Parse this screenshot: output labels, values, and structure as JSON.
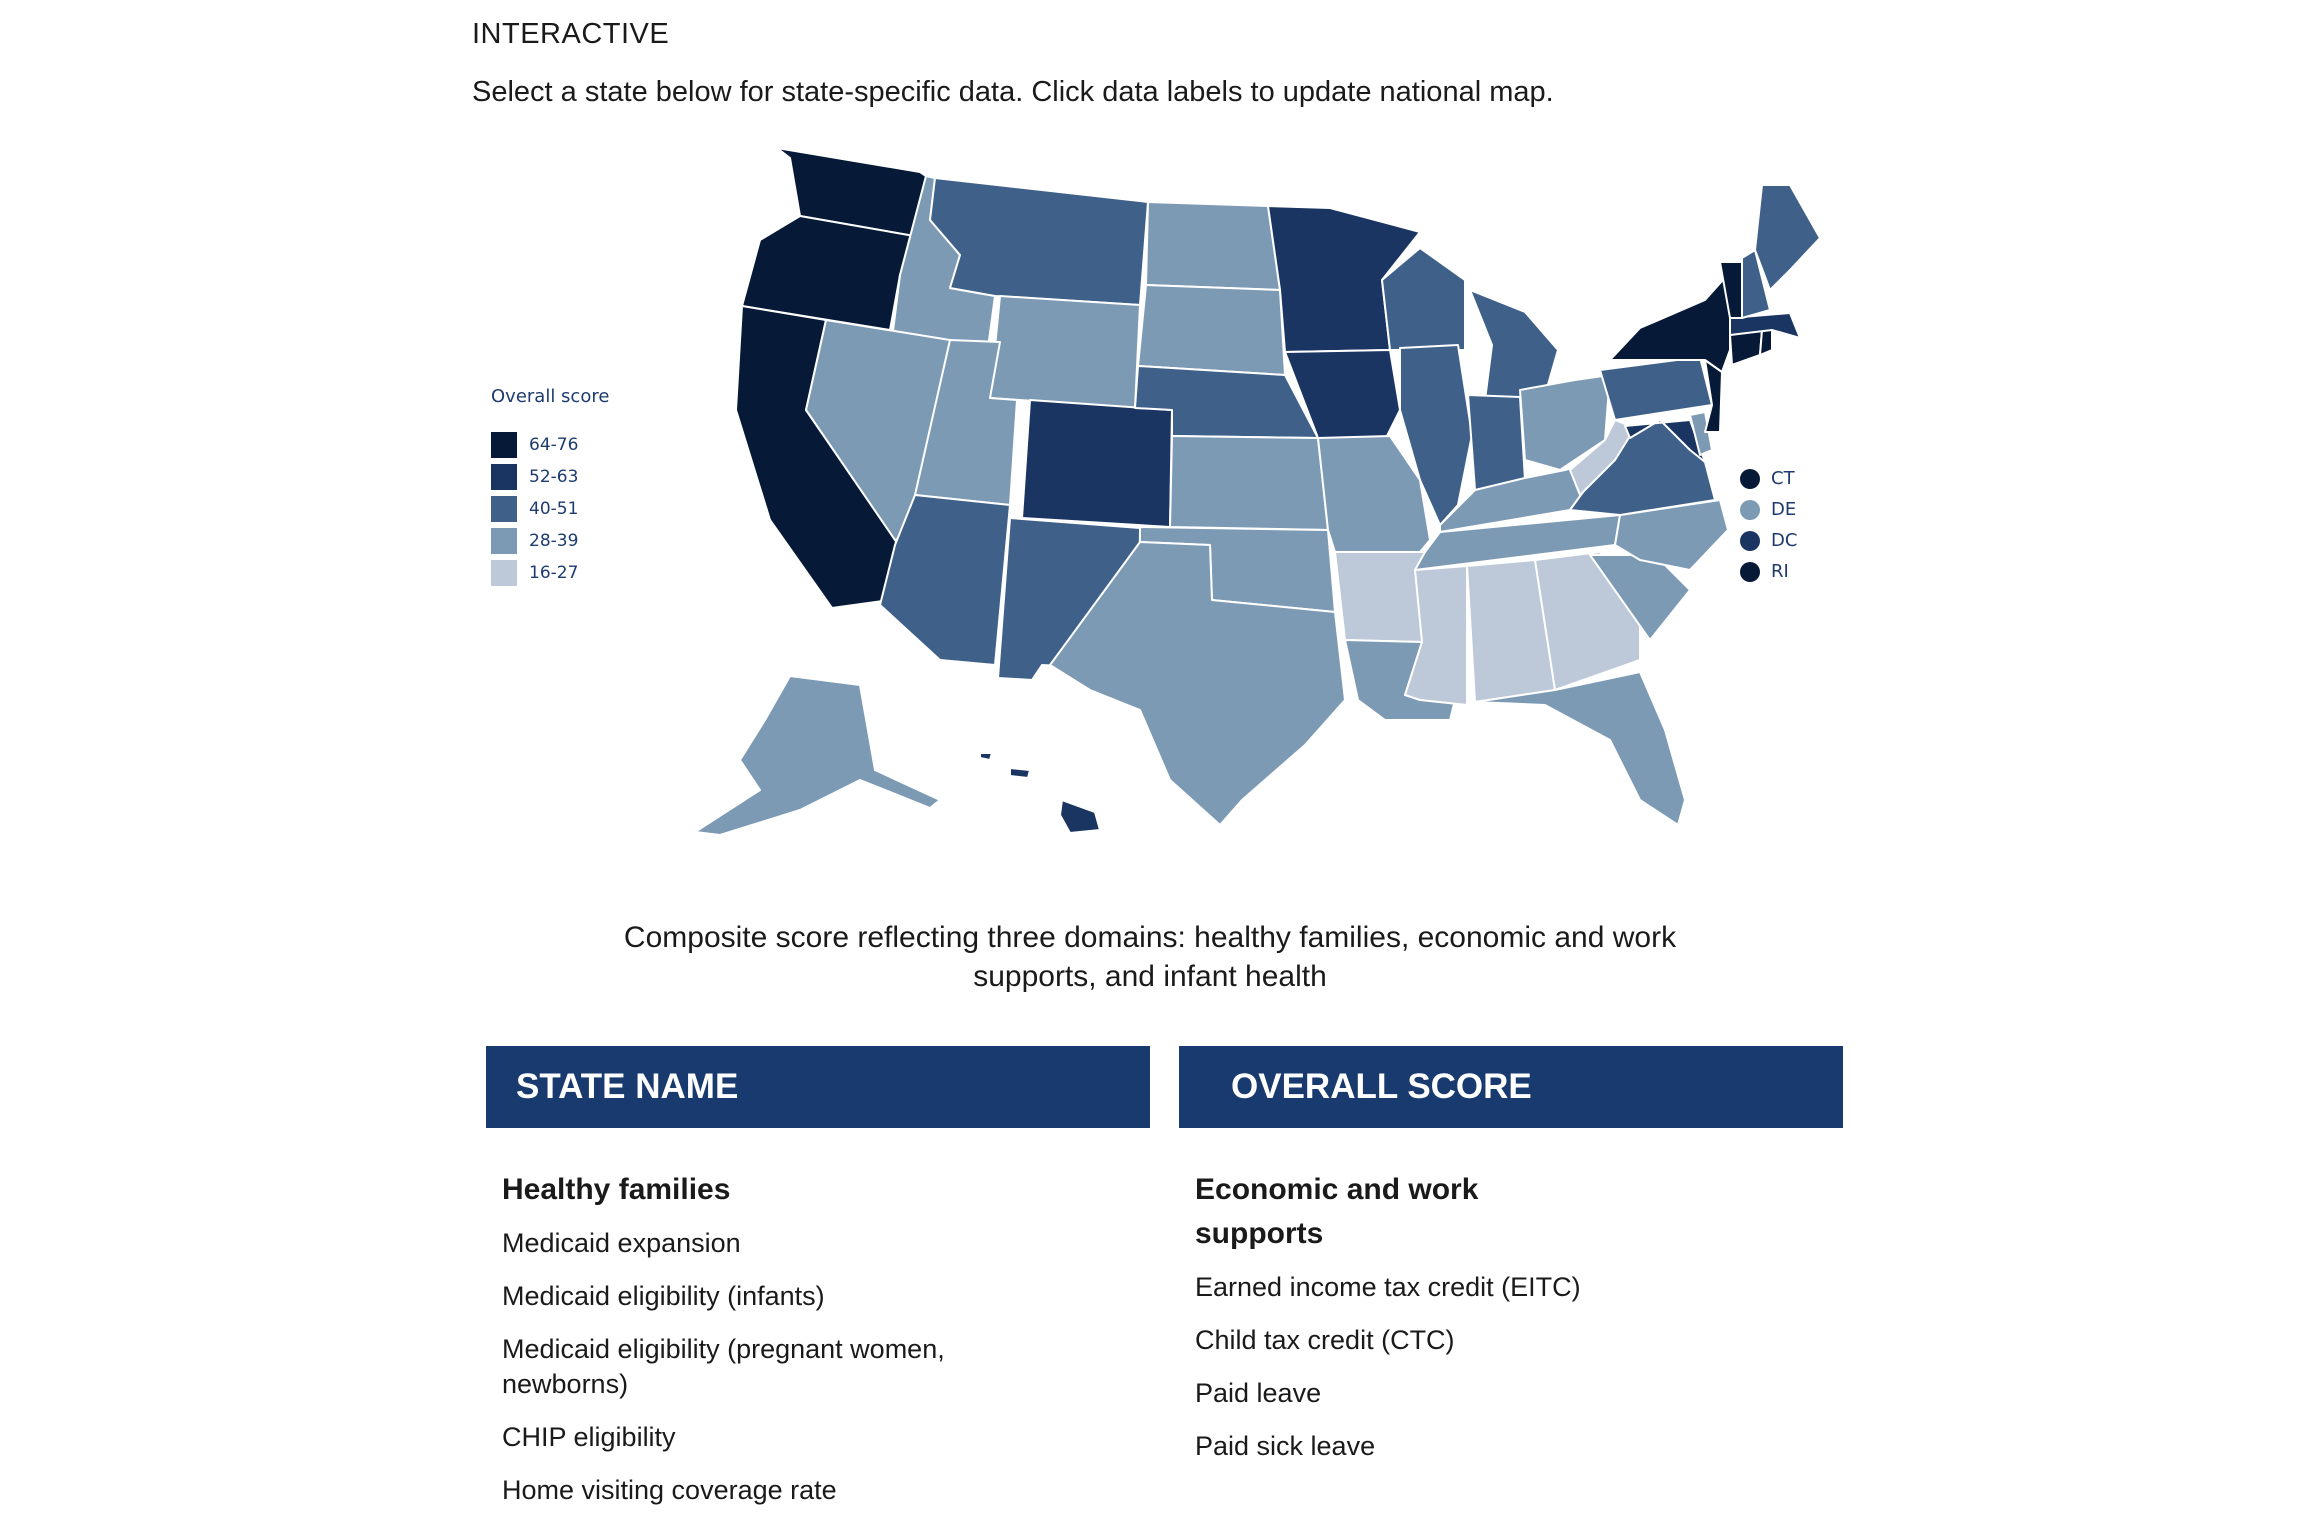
{
  "header": {
    "eyebrow": "INTERACTIVE",
    "intro": "Select a state below for state-specific data. Click data labels to update national map."
  },
  "map": {
    "legend_title": "Overall score",
    "legend": [
      {
        "label": "64-76",
        "color": "#061a38"
      },
      {
        "label": "52-63",
        "color": "#1b3563"
      },
      {
        "label": "40-51",
        "color": "#3f6189"
      },
      {
        "label": "28-39",
        "color": "#7d9ab5"
      },
      {
        "label": "16-27",
        "color": "#bdc8d8"
      }
    ],
    "small_states": [
      {
        "label": "CT",
        "color": "#061a38"
      },
      {
        "label": "DE",
        "color": "#7d9ab5"
      },
      {
        "label": "DC",
        "color": "#1b3563"
      },
      {
        "label": "RI",
        "color": "#061a38"
      }
    ],
    "regions": [
      {
        "name": "washington",
        "tier": 0
      },
      {
        "name": "oregon",
        "tier": 0
      },
      {
        "name": "california",
        "tier": 0
      },
      {
        "name": "idaho",
        "tier": 3
      },
      {
        "name": "nevada",
        "tier": 3
      },
      {
        "name": "montana",
        "tier": 2
      },
      {
        "name": "wyoming",
        "tier": 3
      },
      {
        "name": "utah",
        "tier": 3
      },
      {
        "name": "arizona",
        "tier": 2
      },
      {
        "name": "colorado",
        "tier": 1
      },
      {
        "name": "new-mexico",
        "tier": 2
      },
      {
        "name": "north-dakota",
        "tier": 3
      },
      {
        "name": "south-dakota",
        "tier": 3
      },
      {
        "name": "nebraska",
        "tier": 2
      },
      {
        "name": "kansas",
        "tier": 3
      },
      {
        "name": "oklahoma",
        "tier": 3
      },
      {
        "name": "texas",
        "tier": 3
      },
      {
        "name": "minnesota",
        "tier": 1
      },
      {
        "name": "iowa",
        "tier": 1
      },
      {
        "name": "missouri",
        "tier": 3
      },
      {
        "name": "arkansas",
        "tier": 4
      },
      {
        "name": "louisiana",
        "tier": 3
      },
      {
        "name": "wisconsin",
        "tier": 2
      },
      {
        "name": "illinois",
        "tier": 2
      },
      {
        "name": "michigan",
        "tier": 2
      },
      {
        "name": "indiana",
        "tier": 2
      },
      {
        "name": "ohio",
        "tier": 3
      },
      {
        "name": "kentucky",
        "tier": 3
      },
      {
        "name": "tennessee",
        "tier": 3
      },
      {
        "name": "mississippi",
        "tier": 4
      },
      {
        "name": "alabama",
        "tier": 4
      },
      {
        "name": "georgia",
        "tier": 4
      },
      {
        "name": "florida",
        "tier": 3
      },
      {
        "name": "south-carolina",
        "tier": 3
      },
      {
        "name": "north-carolina",
        "tier": 3
      },
      {
        "name": "virginia",
        "tier": 2
      },
      {
        "name": "west-virginia",
        "tier": 4
      },
      {
        "name": "maryland",
        "tier": 1
      },
      {
        "name": "delaware",
        "tier": 3
      },
      {
        "name": "pennsylvania",
        "tier": 2
      },
      {
        "name": "new-jersey",
        "tier": 0
      },
      {
        "name": "new-york",
        "tier": 0
      },
      {
        "name": "connecticut",
        "tier": 0
      },
      {
        "name": "rhode-island",
        "tier": 0
      },
      {
        "name": "massachusetts",
        "tier": 1
      },
      {
        "name": "vermont",
        "tier": 0
      },
      {
        "name": "new-hampshire",
        "tier": 2
      },
      {
        "name": "maine",
        "tier": 2
      },
      {
        "name": "alaska",
        "tier": 3
      },
      {
        "name": "hawaii",
        "tier": 1
      }
    ]
  },
  "caption": "Composite score reflecting three domains: healthy families, economic and work supports, and infant health",
  "table": {
    "state_header": "STATE NAME",
    "score_header": "OVERALL SCORE"
  },
  "domains": {
    "healthy_families": {
      "title": "Healthy families",
      "items": [
        "Medicaid expansion",
        "Medicaid eligibility (infants)",
        "Medicaid eligibility (pregnant women, newborns)",
        "CHIP eligibility",
        "Home visiting coverage rate"
      ]
    },
    "economic": {
      "title": "Economic and work supports",
      "items": [
        "Earned income tax credit (EITC)",
        "Child tax credit (CTC)",
        "Paid leave",
        "Paid sick leave"
      ]
    }
  }
}
